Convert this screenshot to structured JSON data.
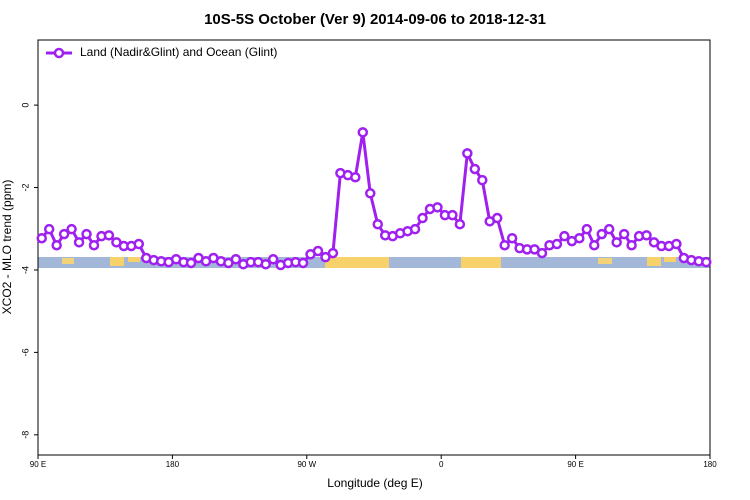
{
  "chart_data": {
    "type": "line",
    "title": "10S-5S October (Ver 9)   2014-09-06 to 2018-12-31",
    "x_label": "Longitude (deg E)",
    "y_label": "XCO2 - MLO trend (ppm)",
    "xlim": [
      90,
      540
    ],
    "xticks": [
      {
        "value": 90,
        "label": "90 E"
      },
      {
        "value": 180,
        "label": "180"
      },
      {
        "value": 270,
        "label": "90 W"
      },
      {
        "value": 360,
        "label": "0"
      },
      {
        "value": 450,
        "label": "90 E"
      },
      {
        "value": 540,
        "label": "180"
      }
    ],
    "ylim": [
      -8.49,
      1.58
    ],
    "yticks": [
      0,
      -2,
      -4,
      -6,
      -8
    ],
    "legend": "top-left",
    "x": [
      92.5,
      97.5,
      102.5,
      107.5,
      112.5,
      117.5,
      122.5,
      127.5,
      132.5,
      137.5,
      142.5,
      147.5,
      152.5,
      157.5,
      162.5,
      167.5,
      172.5,
      177.5,
      182.5,
      187.5,
      192.5,
      197.5,
      202.5,
      207.5,
      212.5,
      217.5,
      222.5,
      227.5,
      232.5,
      237.5,
      242.5,
      247.5,
      252.5,
      257.5,
      262.5,
      267.5,
      272.5,
      277.5,
      282.5,
      287.5,
      292.5,
      297.5,
      302.5,
      307.5,
      312.5,
      317.5,
      322.5,
      327.5,
      332.5,
      337.5,
      342.5,
      347.5,
      352.5,
      357.5,
      362.5,
      367.5,
      372.5,
      377.5,
      382.5,
      387.5,
      392.5,
      397.5,
      402.5,
      407.5,
      412.5,
      417.5,
      422.5,
      427.5,
      432.5,
      437.5,
      442.5,
      447.5,
      452.5,
      457.5,
      462.5,
      467.5,
      472.5,
      477.5,
      482.5,
      487.5,
      492.5,
      497.5,
      502.5,
      507.5,
      512.5,
      517.5,
      522.5,
      527.5,
      532.5,
      537.5
    ],
    "series": [
      {
        "name": "Land (Nadir&Glint) and Ocean (Glint)",
        "color": "#a020f0",
        "values": [
          -3.23,
          -3.01,
          -3.4,
          -3.13,
          -3.01,
          -3.33,
          -3.13,
          -3.4,
          -3.18,
          -3.16,
          -3.33,
          -3.42,
          -3.42,
          -3.37,
          -3.71,
          -3.76,
          -3.79,
          -3.81,
          -3.74,
          -3.81,
          -3.83,
          -3.71,
          -3.79,
          -3.71,
          -3.79,
          -3.83,
          -3.74,
          -3.86,
          -3.81,
          -3.81,
          -3.86,
          -3.74,
          -3.88,
          -3.83,
          -3.81,
          -3.83,
          -3.62,
          -3.54,
          -3.69,
          -3.59,
          -1.65,
          -1.7,
          -1.75,
          -0.66,
          -2.14,
          -2.89,
          -3.16,
          -3.18,
          -3.11,
          -3.06,
          -3.01,
          -2.74,
          -2.52,
          -2.48,
          -2.67,
          -2.67,
          -2.89,
          -1.17,
          -1.55,
          -1.82,
          -2.82,
          -2.74,
          -3.4,
          -3.23,
          -3.47,
          -3.5,
          -3.5,
          -3.59,
          -3.4,
          -3.37,
          -3.18,
          -3.3,
          -3.23,
          -3.01,
          -3.4,
          -3.13,
          -3.01,
          -3.33,
          -3.13,
          -3.4,
          -3.18,
          -3.16,
          -3.33,
          -3.42,
          -3.42,
          -3.37,
          -3.71,
          -3.76,
          -3.79,
          -3.81
        ]
      }
    ]
  }
}
